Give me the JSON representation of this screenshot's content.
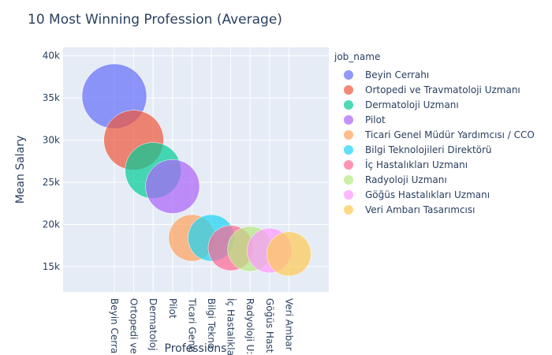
{
  "chart_data": {
    "type": "scatter",
    "title": "10 Most Winning Profession (Average)",
    "xlabel": "Professions",
    "ylabel": "Mean Salary",
    "ylim": [
      12000,
      41000
    ],
    "yticks": [
      15000,
      20000,
      25000,
      30000,
      35000,
      40000
    ],
    "ytick_labels": [
      "15k",
      "20k",
      "25k",
      "30k",
      "35k",
      "40k"
    ],
    "grid": true,
    "legend_title": "job_name",
    "legend_position": "right",
    "series": [
      {
        "name": "Beyin Cerrahı",
        "x_label": "Beyin Cerrahı",
        "tick_label": "Beyin Cerra",
        "y": 35200,
        "color": "#636efa"
      },
      {
        "name": "Ortopedi ve Travmatoloji Uzmanı",
        "x_label": "Ortopedi ve Travmatoloji Uzmanı",
        "tick_label": "Ortopedi ve",
        "y": 30000,
        "color": "#ef553b"
      },
      {
        "name": "Dermatoloji Uzmanı",
        "x_label": "Dermatoloji Uzmanı",
        "tick_label": "Dermatoloj",
        "y": 26400,
        "color": "#00cc96"
      },
      {
        "name": "Pilot",
        "x_label": "Pilot",
        "tick_label": "Pilot",
        "y": 24500,
        "color": "#ab63fa"
      },
      {
        "name": "Ticari Genel Müdür Yardımcısı / CCO",
        "x_label": "Ticari Genel Müdür Yardımcısı / CCO",
        "tick_label": "Ticari Gene",
        "y": 18400,
        "color": "#ffa15a"
      },
      {
        "name": "Bilgi Teknolojileri Direktörü",
        "x_label": "Bilgi Teknolojileri Direktörü",
        "tick_label": "Bilgi Tekno",
        "y": 18400,
        "color": "#19d3f3"
      },
      {
        "name": "İç Hastalıkları Uzmanı",
        "x_label": "İç Hastalıkları Uzmanı",
        "tick_label": "İç Hastalıkla",
        "y": 17200,
        "color": "#ff6692"
      },
      {
        "name": "Radyoloji Uzmanı",
        "x_label": "Radyoloji Uzmanı",
        "tick_label": "Radyoloji U:",
        "y": 17100,
        "color": "#b6e880"
      },
      {
        "name": "Göğüs Hastalıkları Uzmanı",
        "x_label": "Göğüs Hastalıkları Uzmanı",
        "tick_label": "Göğüs Hast",
        "y": 16900,
        "color": "#ff97ff"
      },
      {
        "name": "Veri Ambarı Tasarımcısı",
        "x_label": "Veri Ambarı Tasarımcısı",
        "tick_label": "Veri Ambar",
        "y": 16500,
        "color": "#fecb52"
      }
    ]
  }
}
